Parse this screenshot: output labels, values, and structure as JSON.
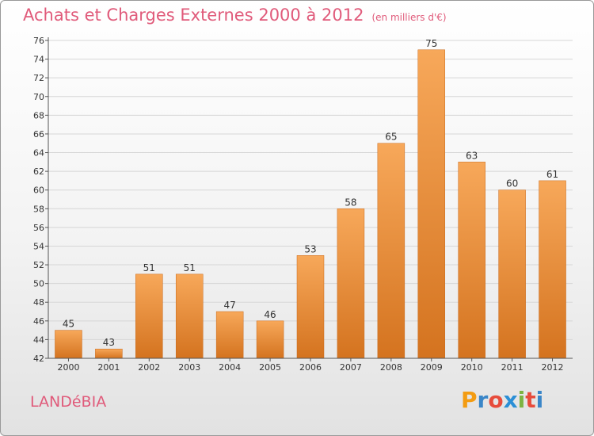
{
  "header": {
    "title": "Achats et Charges Externes 2000 à 2012",
    "subtitle": "(en milliers d'€)"
  },
  "footer": {
    "commune": "LANDéBIA",
    "logo_letters": [
      "P",
      "r",
      "o",
      "x",
      "i",
      "t",
      "i"
    ],
    "logo_colors": [
      "#f39c12",
      "#3a86c8",
      "#e74c3c",
      "#2b8fd6",
      "#7cb342",
      "#e74c3c",
      "#3a86c8"
    ]
  },
  "colors": {
    "bar_light": "#f7a85a",
    "bar_dark": "#d4731f",
    "accent": "#e05a7a"
  },
  "chart_data": {
    "type": "bar",
    "categories": [
      "2000",
      "2001",
      "2002",
      "2003",
      "2004",
      "2005",
      "2006",
      "2007",
      "2008",
      "2009",
      "2010",
      "2011",
      "2012"
    ],
    "values": [
      45,
      43,
      51,
      51,
      47,
      46,
      53,
      58,
      65,
      75,
      63,
      60,
      61
    ],
    "title": "Achats et Charges Externes 2000 à 2012",
    "xlabel": "",
    "ylabel": "",
    "ylim": [
      42,
      76
    ],
    "yticks": [
      42,
      44,
      46,
      48,
      50,
      52,
      54,
      56,
      58,
      60,
      62,
      64,
      66,
      68,
      70,
      72,
      74,
      76
    ],
    "grid": true,
    "legend": "none"
  }
}
